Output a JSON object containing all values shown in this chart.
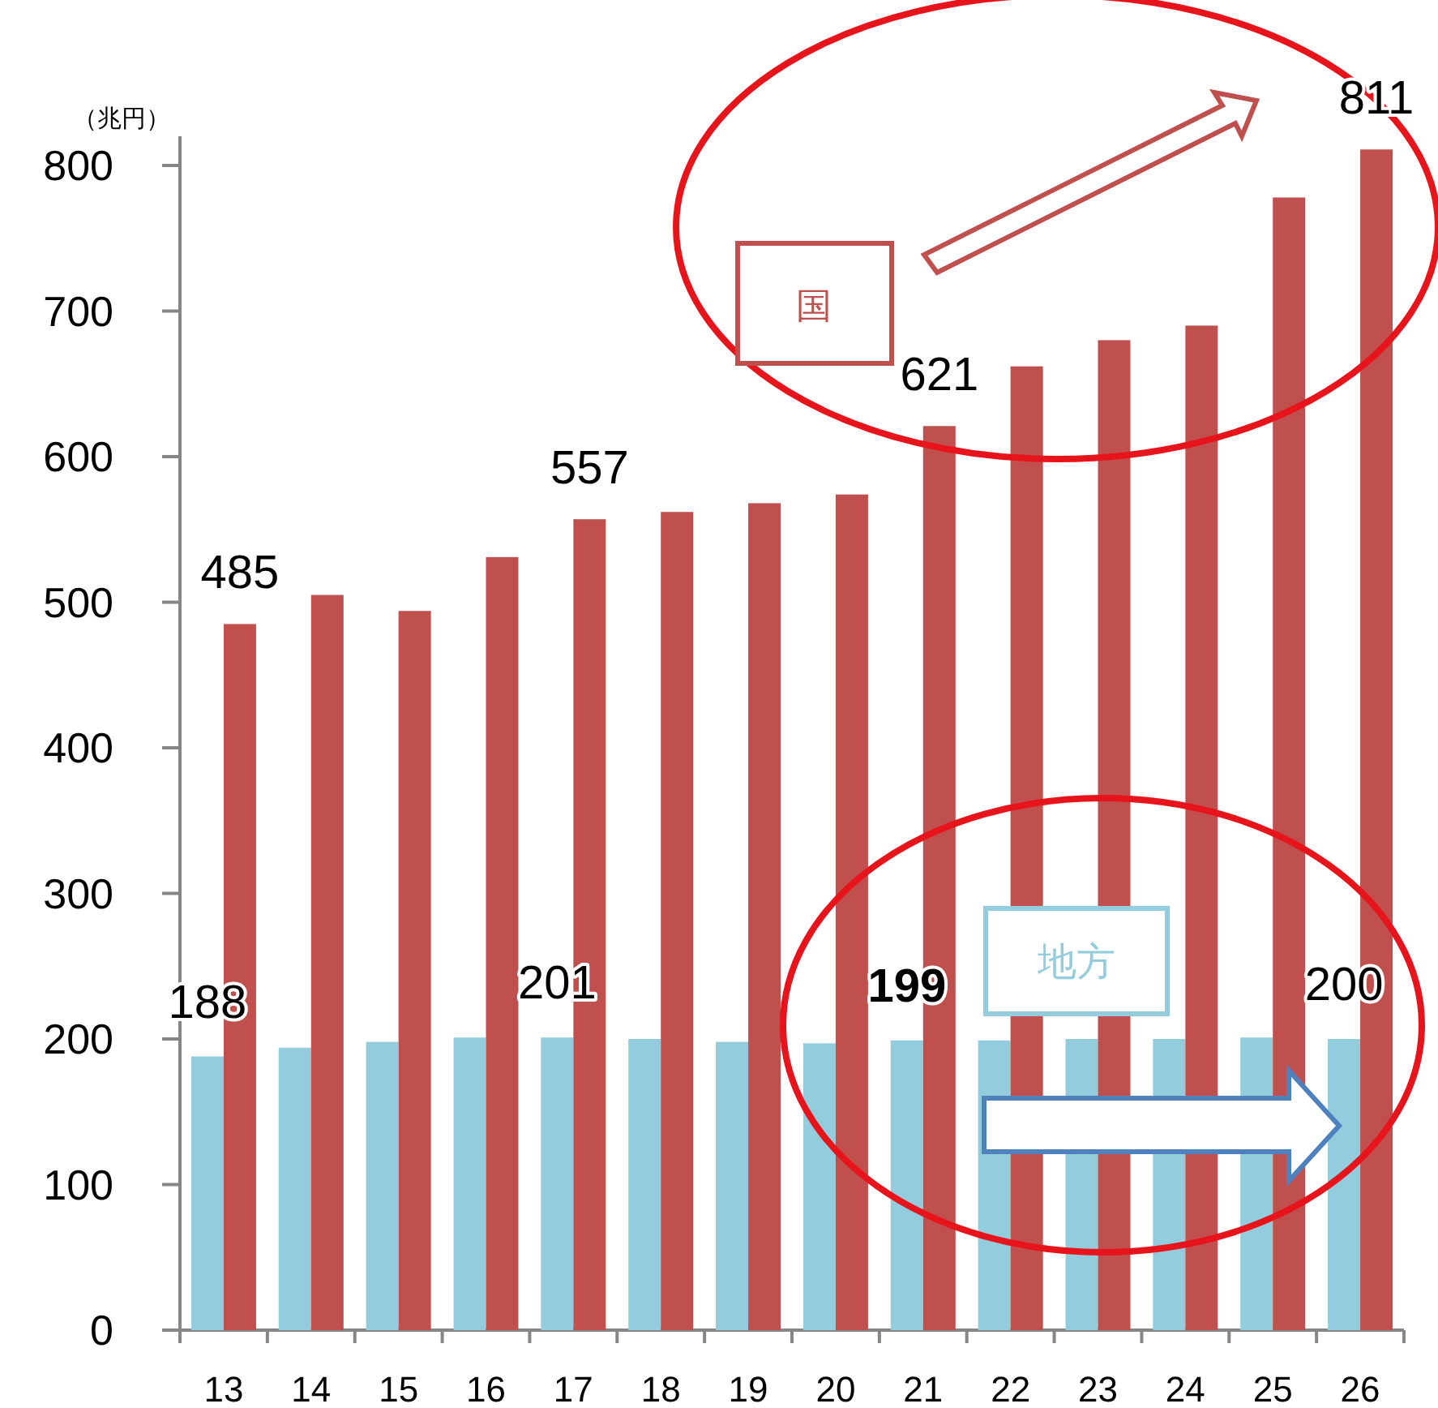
{
  "chart_data": {
    "type": "bar",
    "ylabel": "（兆円）",
    "categories": [
      "13",
      "14",
      "15",
      "16",
      "17",
      "18",
      "19",
      "20",
      "21",
      "22",
      "23",
      "24",
      "25",
      "26"
    ],
    "series": [
      {
        "name": "地方",
        "color": "#93cddd",
        "values": [
          188,
          194,
          198,
          201,
          201,
          200,
          198,
          197,
          199,
          199,
          200,
          200,
          201,
          200
        ],
        "value_labels": [
          "188",
          null,
          null,
          null,
          "201",
          null,
          null,
          null,
          "**199**",
          null,
          null,
          null,
          null,
          "200"
        ]
      },
      {
        "name": "国",
        "color": "#c0504d",
        "values": [
          485,
          505,
          494,
          531,
          557,
          562,
          568,
          574,
          621,
          662,
          680,
          690,
          778,
          811
        ],
        "value_labels": [
          "485",
          null,
          null,
          null,
          "557",
          null,
          null,
          null,
          "621",
          null,
          null,
          null,
          null,
          "811"
        ]
      }
    ],
    "ylim": [
      0,
      820
    ],
    "yticks": [
      0,
      100,
      200,
      300,
      400,
      500,
      600,
      700,
      800
    ],
    "grid": false,
    "legend": false
  }
}
